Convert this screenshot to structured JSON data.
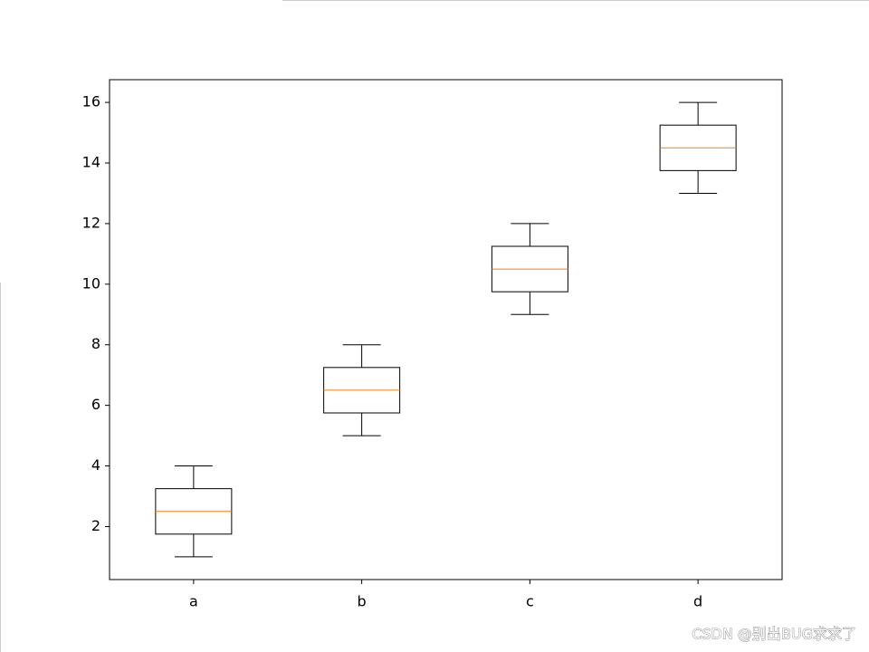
{
  "chart_data": {
    "type": "box",
    "categories": [
      "a",
      "b",
      "c",
      "d"
    ],
    "stats": [
      {
        "whislo": 1,
        "q1": 1.75,
        "med": 2.5,
        "q3": 3.25,
        "whishi": 4
      },
      {
        "whislo": 5,
        "q1": 5.75,
        "med": 6.5,
        "q3": 7.25,
        "whishi": 8
      },
      {
        "whislo": 9,
        "q1": 9.75,
        "med": 10.5,
        "q3": 11.25,
        "whishi": 12
      },
      {
        "whislo": 13,
        "q1": 13.75,
        "med": 14.5,
        "q3": 15.25,
        "whishi": 16
      }
    ],
    "box_color": "#000000",
    "median_color": "#ff7f0e",
    "ylim": [
      0.25,
      16.75
    ],
    "yticks": [
      2,
      4,
      6,
      8,
      10,
      12,
      14,
      16
    ],
    "watermark": "CSDN @别出BUG求求了"
  }
}
